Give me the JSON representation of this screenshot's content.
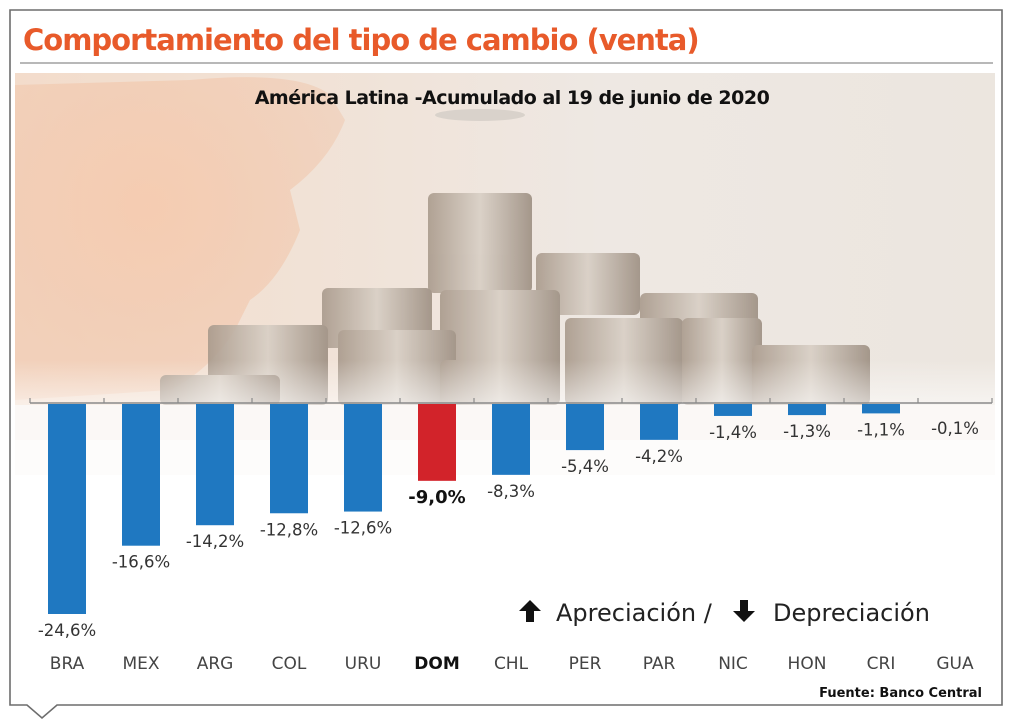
{
  "chart_data": {
    "type": "bar",
    "title": "Comportamiento del tipo de cambio (venta)",
    "subtitle": "América Latina -Acumulado al 19 de junio de 2020",
    "categories": [
      "BRA",
      "MEX",
      "ARG",
      "COL",
      "URU",
      "DOM",
      "CHL",
      "PER",
      "PAR",
      "NIC",
      "HON",
      "CRI",
      "GUA"
    ],
    "values": [
      -24.6,
      -16.6,
      -14.2,
      -12.8,
      -12.6,
      -9.0,
      -8.3,
      -5.4,
      -4.2,
      -1.4,
      -1.3,
      -1.1,
      -0.1
    ],
    "value_labels": [
      "-24,6%",
      "-16,6%",
      "-14,2%",
      "-12,8%",
      "-12,6%",
      "-9,0%",
      "-8,3%",
      "-5,4%",
      "-4,2%",
      "-1,4%",
      "-1,3%",
      "-1,1%",
      "-0,1%"
    ],
    "highlight_category": "DOM",
    "colors": {
      "default": "#1f78c1",
      "highlight": "#d2232a",
      "title": "#e85a2a"
    },
    "xlabel": "",
    "ylabel": "",
    "ylim": [
      -24.6,
      0
    ],
    "grid": false,
    "legend": {
      "up_label": "Apreciación /",
      "down_label": "Depreciación",
      "placement": "bottom-right"
    },
    "source": "Fuente: Banco Central"
  }
}
